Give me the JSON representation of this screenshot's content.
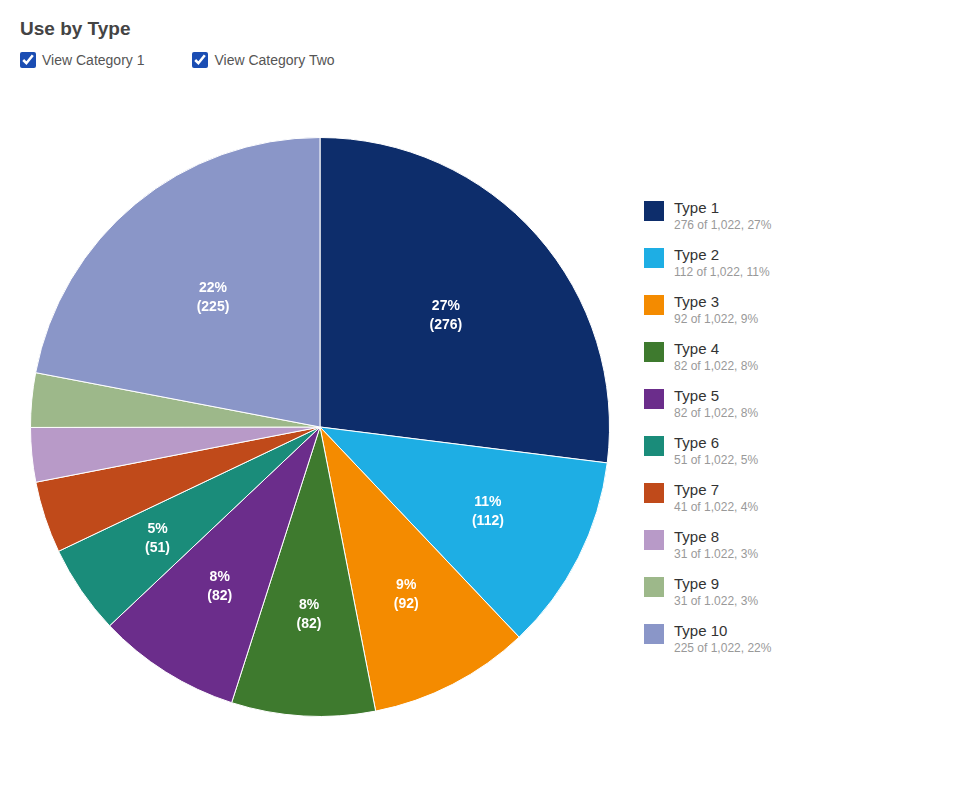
{
  "chart_data": {
    "type": "pie",
    "title": "Use by Type",
    "filters": [
      "View Category 1",
      "View Category Two"
    ],
    "categories": [
      "Type 1",
      "Type 2",
      "Type 3",
      "Type 4",
      "Type 5",
      "Type 6",
      "Type 7",
      "Type 8",
      "Type 9",
      "Type 10"
    ],
    "values": [
      276,
      112,
      92,
      82,
      82,
      51,
      41,
      31,
      31,
      225
    ],
    "colors": [
      "#0d2d6b",
      "#1eaee4",
      "#f48b00",
      "#3e7a2e",
      "#6b2d8b",
      "#1a8c7a",
      "#c04a1a",
      "#b89ac8",
      "#9db88a",
      "#8a96c8"
    ],
    "data_labels": true,
    "value_labels": [
      "27%\n(276)",
      "11%\n(112)",
      "9%\n(92)",
      "8%\n(82)",
      "8%\n(82)",
      "5%\n(51)",
      null,
      null,
      null,
      "22%\n(225)"
    ],
    "legend": "right",
    "legend_subtexts": [
      "276 of 1,022, 27%",
      "112 of 1,022, 11%",
      "92 of 1,022, 9%",
      "82 of 1,022, 8%",
      "82 of 1,022, 8%",
      "51 of 1,022, 5%",
      "41 of 1,022, 4%",
      "31 of 1.022, 3%",
      "31 of 1.022, 3%",
      "225 of 1,022, 22%"
    ]
  }
}
